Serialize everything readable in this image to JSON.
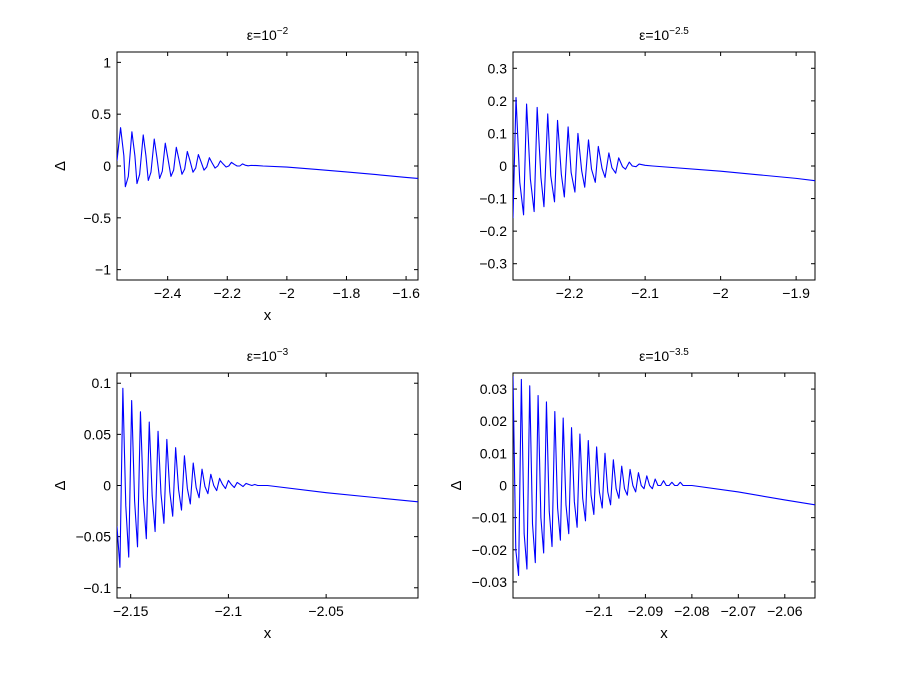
{
  "chart_data": [
    {
      "type": "line",
      "title": "ε=10",
      "title_exp": "−2",
      "xlabel": "x",
      "ylabel": "Δ",
      "xlim": [
        -2.57,
        -1.56
      ],
      "ylim": [
        -1.1,
        1.1
      ],
      "xticks": [
        -2.4,
        -2.2,
        -2,
        -1.8,
        -1.6
      ],
      "xtick_labels": [
        "−2.4",
        "−2.2",
        "−2",
        "−1.8",
        "−1.6"
      ],
      "yticks": [
        -1,
        -0.5,
        0,
        0.5,
        1
      ],
      "ytick_labels": [
        "−1",
        "−0.5",
        "0",
        "0.5",
        "1"
      ],
      "grid": false,
      "series": [
        {
          "color": "#0000ff",
          "x": [
            -2.57,
            -2.558,
            -2.547,
            -2.542,
            -2.532,
            -2.52,
            -2.51,
            -2.503,
            -2.494,
            -2.482,
            -2.473,
            -2.465,
            -2.456,
            -2.445,
            -2.436,
            -2.427,
            -2.418,
            -2.408,
            -2.399,
            -2.389,
            -2.38,
            -2.371,
            -2.362,
            -2.352,
            -2.343,
            -2.334,
            -2.325,
            -2.315,
            -2.306,
            -2.297,
            -2.288,
            -2.278,
            -2.269,
            -2.26,
            -2.251,
            -2.241,
            -2.232,
            -2.223,
            -2.214,
            -2.204,
            -2.195,
            -2.186,
            -2.176,
            -2.167,
            -2.158,
            -2.149,
            -2.14,
            -2.13,
            -2.12,
            -2.1,
            -2.08,
            -2.0,
            -1.9,
            -1.8,
            -1.7,
            -1.6,
            -1.56
          ],
          "y": [
            0.05,
            0.37,
            0.1,
            -0.2,
            -0.1,
            0.33,
            0.1,
            -0.17,
            -0.08,
            0.3,
            0.1,
            -0.14,
            -0.06,
            0.26,
            0.08,
            -0.12,
            -0.05,
            0.22,
            0.07,
            -0.1,
            -0.04,
            0.18,
            0.06,
            -0.08,
            -0.03,
            0.14,
            0.05,
            -0.06,
            -0.02,
            0.11,
            0.04,
            -0.04,
            -0.01,
            0.08,
            0.03,
            -0.02,
            0.0,
            0.05,
            0.02,
            -0.01,
            0.0,
            0.035,
            0.015,
            0.0,
            0.0,
            0.02,
            0.008,
            0.002,
            0.006,
            0.004,
            0.0,
            -0.01,
            -0.033,
            -0.057,
            -0.083,
            -0.11,
            -0.12
          ]
        }
      ]
    },
    {
      "type": "line",
      "title": "ε=10",
      "title_exp": "−2.5",
      "xlabel": "",
      "ylabel": "",
      "xlim": [
        -2.275,
        -1.875
      ],
      "ylim": [
        -0.35,
        0.35
      ],
      "xticks": [
        -2.2,
        -2.1,
        -2,
        -1.9
      ],
      "xtick_labels": [
        "−2.2",
        "−2.1",
        "−2",
        "−1.9"
      ],
      "yticks": [
        -0.3,
        -0.2,
        -0.1,
        0,
        0.1,
        0.2,
        0.3
      ],
      "ytick_labels": [
        "−0.3",
        "−0.2",
        "−0.1",
        "0",
        "0.1",
        "0.2",
        "0.3"
      ],
      "grid": false,
      "series": [
        {
          "color": "#0000ff",
          "x": [
            -2.275,
            -2.271,
            -2.266,
            -2.261,
            -2.257,
            -2.252,
            -2.247,
            -2.243,
            -2.238,
            -2.234,
            -2.229,
            -2.225,
            -2.22,
            -2.216,
            -2.211,
            -2.207,
            -2.202,
            -2.198,
            -2.193,
            -2.189,
            -2.184,
            -2.18,
            -2.175,
            -2.171,
            -2.166,
            -2.162,
            -2.157,
            -2.153,
            -2.148,
            -2.144,
            -2.139,
            -2.135,
            -2.13,
            -2.126,
            -2.121,
            -2.117,
            -2.112,
            -2.108,
            -2.1,
            -2.09,
            -2.0,
            -1.95,
            -1.9,
            -1.875
          ],
          "y": [
            -0.16,
            0.21,
            -0.05,
            -0.15,
            0.19,
            -0.04,
            -0.14,
            0.18,
            -0.035,
            -0.125,
            0.16,
            -0.03,
            -0.11,
            0.14,
            -0.025,
            -0.095,
            0.12,
            -0.02,
            -0.08,
            0.1,
            -0.015,
            -0.065,
            0.08,
            -0.01,
            -0.05,
            0.06,
            -0.008,
            -0.035,
            0.04,
            -0.005,
            -0.022,
            0.025,
            -0.002,
            -0.01,
            0.012,
            0.0,
            -0.002,
            0.006,
            0.002,
            0.0,
            -0.016,
            -0.027,
            -0.038,
            -0.045
          ]
        }
      ]
    },
    {
      "type": "line",
      "title": "ε=10",
      "title_exp": "−3",
      "xlabel": "x",
      "ylabel": "Δ",
      "xlim": [
        -2.157,
        -2.003
      ],
      "ylim": [
        -0.11,
        0.11
      ],
      "xticks": [
        -2.15,
        -2.1,
        -2.05
      ],
      "xtick_labels": [
        "−2.15",
        "−2.1",
        "−2.05"
      ],
      "yticks": [
        -0.1,
        -0.05,
        0,
        0.05,
        0.1
      ],
      "ytick_labels": [
        "−0.1",
        "−0.05",
        "0",
        "0.05",
        "0.1"
      ],
      "grid": false,
      "series": [
        {
          "color": "#0000ff",
          "x": [
            -2.157,
            -2.1555,
            -2.154,
            -2.1525,
            -2.151,
            -2.1495,
            -2.148,
            -2.1465,
            -2.145,
            -2.1435,
            -2.142,
            -2.1405,
            -2.139,
            -2.1375,
            -2.136,
            -2.1345,
            -2.133,
            -2.1315,
            -2.13,
            -2.1285,
            -2.127,
            -2.1255,
            -2.124,
            -2.1225,
            -2.121,
            -2.1195,
            -2.118,
            -2.1165,
            -2.115,
            -2.1135,
            -2.112,
            -2.1105,
            -2.109,
            -2.1075,
            -2.106,
            -2.1045,
            -2.103,
            -2.1015,
            -2.1,
            -2.0985,
            -2.097,
            -2.0955,
            -2.094,
            -2.0925,
            -2.091,
            -2.0895,
            -2.088,
            -2.0865,
            -2.085,
            -2.08,
            -2.05,
            -2.003
          ],
          "y": [
            -0.04,
            -0.08,
            0.095,
            -0.02,
            -0.07,
            0.083,
            -0.015,
            -0.06,
            0.072,
            -0.012,
            -0.052,
            0.062,
            -0.01,
            -0.045,
            0.053,
            -0.008,
            -0.037,
            0.045,
            -0.006,
            -0.03,
            0.037,
            -0.004,
            -0.024,
            0.029,
            -0.003,
            -0.018,
            0.022,
            -0.002,
            -0.012,
            0.016,
            -0.001,
            -0.008,
            0.011,
            0.0,
            -0.005,
            0.007,
            0.001,
            -0.003,
            0.005,
            0.001,
            -0.002,
            0.003,
            0.001,
            -0.001,
            0.002,
            0.001,
            0.0,
            0.001,
            0.0,
            0.0,
            -0.007,
            -0.016
          ]
        }
      ]
    },
    {
      "type": "line",
      "title": "ε=10",
      "title_exp": "−3.5",
      "xlabel": "x",
      "ylabel": "Δ",
      "xlim": [
        -2.1185,
        -2.0535
      ],
      "ylim": [
        -0.035,
        0.035
      ],
      "xticks": [
        -2.1,
        -2.09,
        -2.08,
        -2.07,
        -2.06
      ],
      "xtick_labels": [
        "−2.1",
        "−2.09",
        "−2.08",
        "−2.07",
        "−2.06"
      ],
      "yticks": [
        -0.03,
        -0.02,
        -0.01,
        0,
        0.01,
        0.02,
        0.03
      ],
      "ytick_labels": [
        "−0.03",
        "−0.02",
        "−0.01",
        "0",
        "0.01",
        "0.02",
        "0.03"
      ],
      "grid": false,
      "series": [
        {
          "color": "#0000ff",
          "x": [
            -2.1185,
            -2.1179,
            -2.1173,
            -2.1167,
            -2.1161,
            -2.1155,
            -2.1149,
            -2.1143,
            -2.1137,
            -2.1131,
            -2.1125,
            -2.1119,
            -2.1113,
            -2.1107,
            -2.1101,
            -2.1095,
            -2.1089,
            -2.1083,
            -2.1077,
            -2.1071,
            -2.1065,
            -2.1059,
            -2.1053,
            -2.1047,
            -2.1041,
            -2.1035,
            -2.1029,
            -2.1023,
            -2.1017,
            -2.1011,
            -2.1005,
            -2.0999,
            -2.0993,
            -2.0987,
            -2.0981,
            -2.0975,
            -2.0969,
            -2.0963,
            -2.0957,
            -2.0951,
            -2.0945,
            -2.0939,
            -2.0933,
            -2.0927,
            -2.0921,
            -2.0915,
            -2.0909,
            -2.0903,
            -2.0897,
            -2.0891,
            -2.0885,
            -2.0879,
            -2.0873,
            -2.0867,
            -2.0861,
            -2.0855,
            -2.0849,
            -2.0843,
            -2.0837,
            -2.0831,
            -2.0825,
            -2.0819,
            -2.0813,
            -2.08,
            -2.07,
            -2.06,
            -2.0535
          ],
          "y": [
            0.034,
            -0.02,
            -0.028,
            0.033,
            -0.015,
            -0.026,
            0.031,
            -0.012,
            -0.024,
            0.028,
            -0.01,
            -0.021,
            0.026,
            -0.008,
            -0.019,
            0.023,
            -0.007,
            -0.017,
            0.021,
            -0.006,
            -0.015,
            0.018,
            -0.005,
            -0.013,
            0.016,
            -0.004,
            -0.011,
            0.014,
            -0.003,
            -0.009,
            0.012,
            -0.002,
            -0.007,
            0.01,
            -0.002,
            -0.006,
            0.008,
            -0.001,
            -0.004,
            0.006,
            -0.001,
            -0.003,
            0.005,
            0.0,
            -0.002,
            0.004,
            0.0,
            -0.001,
            0.003,
            0.0,
            -0.001,
            0.002,
            0.0,
            0.0,
            0.0015,
            0.0,
            0.0,
            0.001,
            0.0,
            0.0,
            0.001,
            0.0,
            0.0,
            0.0,
            -0.002,
            -0.0045,
            -0.006
          ]
        }
      ]
    }
  ]
}
